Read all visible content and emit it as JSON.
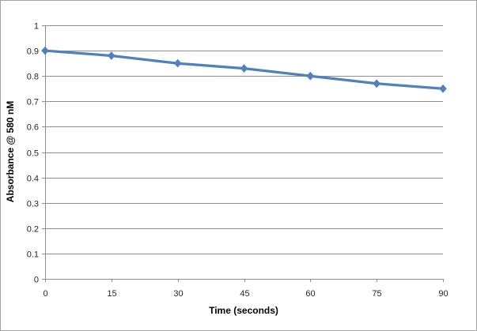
{
  "chart_data": {
    "type": "line",
    "title": "",
    "xlabel": "Time (seconds)",
    "ylabel": "Absorbance @ 580 nM",
    "x": [
      0,
      15,
      30,
      45,
      60,
      75,
      90
    ],
    "xtick_labels": [
      "0",
      "15",
      "30",
      "45",
      "60",
      "75",
      "90"
    ],
    "series": [
      {
        "name": "Absorbance @ 580 nM",
        "values": [
          0.9,
          0.88,
          0.85,
          0.83,
          0.8,
          0.77,
          0.75
        ]
      }
    ],
    "xlim": [
      0,
      90
    ],
    "ylim": [
      0,
      1
    ],
    "ytick_step": 0.1,
    "ytick_labels": [
      "0",
      "0.1",
      "0.2",
      "0.3",
      "0.4",
      "0.5",
      "0.6",
      "0.7",
      "0.8",
      "0.9",
      "1"
    ],
    "grid": true,
    "legend_position": "none",
    "marker": "diamond",
    "colors": {
      "series": "#4F81BD",
      "gridline": "#8E8E8E",
      "axis": "#8E8E8E",
      "tick_text": "#262626",
      "title_text": "#000000",
      "border": "#A3A3A3",
      "background": "#FFFFFF"
    }
  }
}
